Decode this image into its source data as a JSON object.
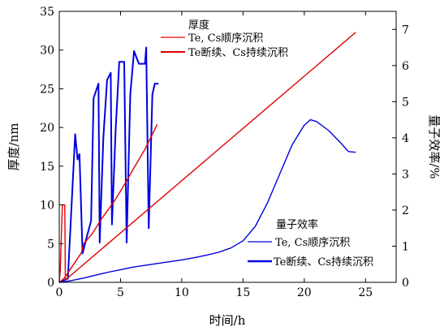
{
  "chart_data": {
    "type": "line",
    "xlabel": "时间/h",
    "ylabel_left": "厚度/nm",
    "ylabel_right": "量子效率/%",
    "xlim": [
      0,
      27.5
    ],
    "ylim_left": [
      0,
      35
    ],
    "ylim_right": [
      0,
      7.5
    ],
    "x_ticks": [
      "0",
      "5",
      "10",
      "15",
      "20",
      "25"
    ],
    "y_left_ticks": [
      "0",
      "5",
      "10",
      "15",
      "20",
      "25",
      "30",
      "35"
    ],
    "y_right_ticks": [
      "0",
      "1",
      "2",
      "3",
      "4",
      "5",
      "6",
      "7"
    ],
    "legend_thickness": {
      "title": "厚度",
      "entries": [
        "Te, Cs顺序沉积",
        "Te断续、Cs持续沉积"
      ]
    },
    "legend_qe": {
      "title": "量子效率",
      "entries": [
        "Te, Cs顺序沉积",
        "Te断续、Cs持续沉积"
      ]
    },
    "series": [
      {
        "name": "Te, Cs顺序沉积",
        "kind": "thickness",
        "axis": "left",
        "color": "#e00000",
        "points": [
          [
            0,
            0
          ],
          [
            0.08,
            1.5
          ],
          [
            0.25,
            10
          ],
          [
            0.45,
            10
          ],
          [
            0.5,
            0.3
          ],
          [
            24.2,
            32.3
          ]
        ]
      },
      {
        "name": "Te断续、Cs持续沉积",
        "kind": "thickness",
        "axis": "left",
        "color": "#e00000",
        "points": [
          [
            0,
            0
          ],
          [
            0.4,
            0.5
          ],
          [
            1.8,
            3.8
          ],
          [
            2.0,
            5.0
          ],
          [
            2.7,
            6.3
          ],
          [
            3.5,
            8.3
          ],
          [
            4.5,
            10.5
          ],
          [
            5.2,
            12.3
          ],
          [
            6.0,
            14.5
          ],
          [
            7.0,
            17.2
          ],
          [
            8.0,
            20.4
          ]
        ]
      },
      {
        "name": "Te, Cs顺序沉积",
        "kind": "qe",
        "axis": "right",
        "color": "#0000e0",
        "points": [
          [
            0,
            0
          ],
          [
            0.5,
            0.02
          ],
          [
            1,
            0.05
          ],
          [
            2,
            0.12
          ],
          [
            3,
            0.2
          ],
          [
            4,
            0.28
          ],
          [
            5,
            0.35
          ],
          [
            6,
            0.42
          ],
          [
            7,
            0.47
          ],
          [
            8,
            0.52
          ],
          [
            9,
            0.57
          ],
          [
            10,
            0.62
          ],
          [
            11,
            0.68
          ],
          [
            12,
            0.75
          ],
          [
            13,
            0.83
          ],
          [
            14,
            0.95
          ],
          [
            15,
            1.15
          ],
          [
            16,
            1.55
          ],
          [
            17,
            2.2
          ],
          [
            18,
            3.0
          ],
          [
            19,
            3.8
          ],
          [
            20,
            4.35
          ],
          [
            20.5,
            4.5
          ],
          [
            21,
            4.45
          ],
          [
            22,
            4.2
          ],
          [
            23,
            3.85
          ],
          [
            23.6,
            3.62
          ],
          [
            24.2,
            3.6
          ]
        ]
      },
      {
        "name": "Te断续、Cs持续沉积",
        "kind": "qe",
        "axis": "right",
        "color": "#0000e0",
        "points": [
          [
            0,
            0
          ],
          [
            0.7,
            0.1
          ],
          [
            1.3,
            4.1
          ],
          [
            1.5,
            3.4
          ],
          [
            1.65,
            3.55
          ],
          [
            1.9,
            0.8
          ],
          [
            2.2,
            1.2
          ],
          [
            2.6,
            1.7
          ],
          [
            2.8,
            5.1
          ],
          [
            3.2,
            5.5
          ],
          [
            3.3,
            1.1
          ],
          [
            3.6,
            4.0
          ],
          [
            3.9,
            5.6
          ],
          [
            4.2,
            5.8
          ],
          [
            4.3,
            1.6
          ],
          [
            4.6,
            4.2
          ],
          [
            4.9,
            6.1
          ],
          [
            5.3,
            6.1
          ],
          [
            5.5,
            1.1
          ],
          [
            5.8,
            5.2
          ],
          [
            6.1,
            6.4
          ],
          [
            6.5,
            6.05
          ],
          [
            7.0,
            6.05
          ],
          [
            7.1,
            6.5
          ],
          [
            7.3,
            1.5
          ],
          [
            7.6,
            5.2
          ],
          [
            7.8,
            5.5
          ],
          [
            8.1,
            5.5
          ]
        ]
      }
    ]
  }
}
